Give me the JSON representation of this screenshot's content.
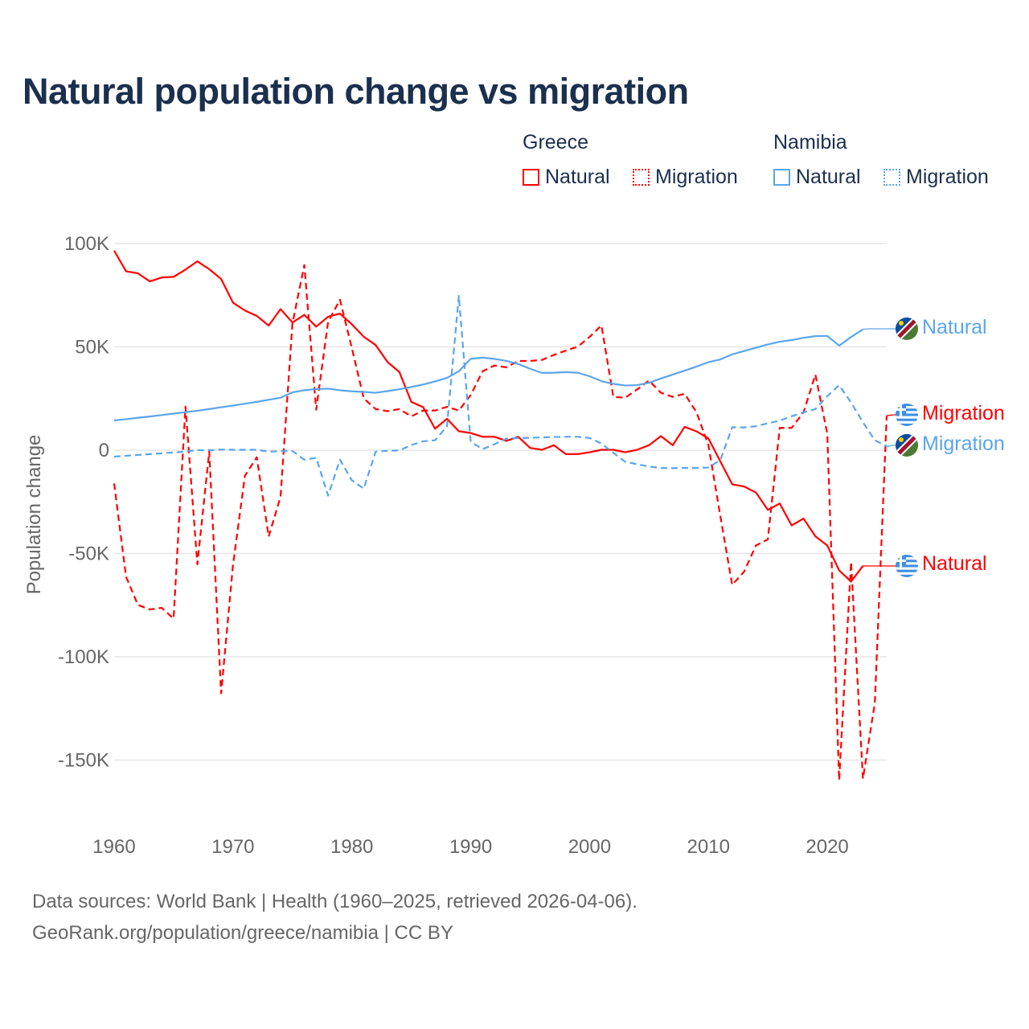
{
  "title": "Natural population change vs migration",
  "legend": {
    "groups": [
      {
        "name": "Greece",
        "items": [
          {
            "label": "Natural",
            "style": "solid"
          },
          {
            "label": "Migration",
            "style": "dotted"
          }
        ],
        "color": "#ff0000"
      },
      {
        "name": "Namibia",
        "items": [
          {
            "label": "Natural",
            "style": "solid"
          },
          {
            "label": "Migration",
            "style": "dotted"
          }
        ],
        "color": "#5aa5ec"
      }
    ]
  },
  "footer": {
    "line1": "Data sources: World Bank | Health (1960–2025, retrieved 2026-04-06).",
    "line2": "GeoRank.org/population/greece/namibia | CC BY"
  },
  "end_labels": {
    "namibia_natural": "Natural",
    "greece_migration": "Migration",
    "namibia_migration": "Migration",
    "greece_natural": "Natural"
  },
  "chart_data": {
    "type": "line",
    "title": "Natural population change vs migration",
    "xlabel": "",
    "ylabel": "Population change",
    "xlim": [
      1960,
      2025
    ],
    "ylim": [
      -160000,
      100000
    ],
    "x_ticks": [
      1960,
      1970,
      1980,
      1990,
      2000,
      2010,
      2020
    ],
    "x_tick_labels": [
      "1960",
      "1970",
      "1980",
      "1990",
      "2000",
      "2010",
      "2020"
    ],
    "y_ticks": [
      100000,
      50000,
      0,
      -50000,
      -100000,
      -150000
    ],
    "y_tick_labels": [
      "100K",
      "50K",
      "0",
      "-50K",
      "-100K",
      "-150K"
    ],
    "grid": true,
    "legend_position": "top-right",
    "series": [
      {
        "name": "Greece Natural",
        "country": "Greece",
        "kind": "Natural",
        "color": "#ff0000",
        "dash": false,
        "start_year": 1960,
        "values": [
          96600,
          86600,
          85600,
          81700,
          83600,
          83900,
          87400,
          91400,
          87600,
          82900,
          71400,
          67600,
          65000,
          60300,
          68300,
          61800,
          65500,
          59800,
          64600,
          66100,
          60900,
          54900,
          50900,
          42700,
          37800,
          23400,
          20800,
          10400,
          15200,
          9200,
          8300,
          6500,
          6500,
          4500,
          6500,
          1100,
          200,
          2400,
          -1900,
          -1900,
          -1000,
          200,
          200,
          -1000,
          200,
          2400,
          6800,
          2400,
          11300,
          9100,
          5700,
          -5400,
          -16500,
          -17600,
          -20500,
          -28900,
          -25800,
          -36400,
          -33100,
          -41700,
          -46100,
          -58200,
          -63600,
          -56000
        ]
      },
      {
        "name": "Greece Migration",
        "country": "Greece",
        "kind": "Migration",
        "color": "#ff0000",
        "dash": true,
        "start_year": 1960,
        "values": [
          -16100,
          -61200,
          -74900,
          -77100,
          -76300,
          -81500,
          21100,
          -55200,
          -700,
          -117700,
          -55500,
          -12400,
          -3400,
          -41800,
          -22500,
          61300,
          89600,
          19600,
          62100,
          72800,
          49400,
          25100,
          19900,
          18900,
          19900,
          16400,
          19200,
          19200,
          21000,
          19200,
          26700,
          38200,
          41000,
          40100,
          43200,
          43200,
          43700,
          46100,
          48200,
          50100,
          54800,
          60400,
          25800,
          25400,
          29400,
          33700,
          27800,
          25800,
          27300,
          18300,
          2400,
          -31800,
          -65200,
          -58800,
          -46100,
          -43200,
          10800,
          10800,
          18300,
          36600,
          7900,
          -159800,
          -54100,
          -159000,
          -122400,
          16700
        ]
      },
      {
        "name": "Namibia Natural",
        "country": "Namibia",
        "kind": "Natural",
        "color": "#5aa5ec",
        "dash": false,
        "start_year": 1960,
        "values": [
          14400,
          15000,
          15700,
          16300,
          17000,
          17700,
          18400,
          19100,
          19900,
          20800,
          21600,
          22500,
          23400,
          24400,
          25400,
          28000,
          29000,
          29600,
          29800,
          29000,
          28500,
          28200,
          27800,
          28600,
          29500,
          30600,
          31800,
          33300,
          35000,
          38200,
          44200,
          44800,
          44200,
          43200,
          41700,
          39400,
          37400,
          37500,
          37800,
          37500,
          35800,
          33400,
          32100,
          31300,
          31500,
          32600,
          34700,
          36600,
          38500,
          40500,
          42600,
          43900,
          46400,
          48000,
          49600,
          51200,
          52500,
          53300,
          54400,
          55200,
          55300,
          50600,
          54800,
          58500
        ]
      },
      {
        "name": "Namibia Migration",
        "country": "Namibia",
        "kind": "Migration",
        "color": "#5aa5ec",
        "dash": true,
        "start_year": 1960,
        "values": [
          -3100,
          -2700,
          -2300,
          -1900,
          -1500,
          -1100,
          -700,
          0,
          0,
          300,
          200,
          200,
          200,
          -700,
          -500,
          -400,
          -4600,
          -3700,
          -22000,
          -4600,
          -14600,
          -18600,
          -700,
          -300,
          -100,
          2500,
          4300,
          4800,
          11500,
          74700,
          4000,
          500,
          2900,
          5600,
          5900,
          6000,
          6200,
          6400,
          6500,
          6500,
          5900,
          3200,
          -1300,
          -5600,
          -6800,
          -7900,
          -8600,
          -8700,
          -8600,
          -8600,
          -8400,
          -4800,
          11100,
          11000,
          11600,
          13000,
          14300,
          16400,
          18300,
          19900,
          26200,
          31500,
          23100,
          13500,
          4800,
          1900
        ]
      }
    ]
  }
}
